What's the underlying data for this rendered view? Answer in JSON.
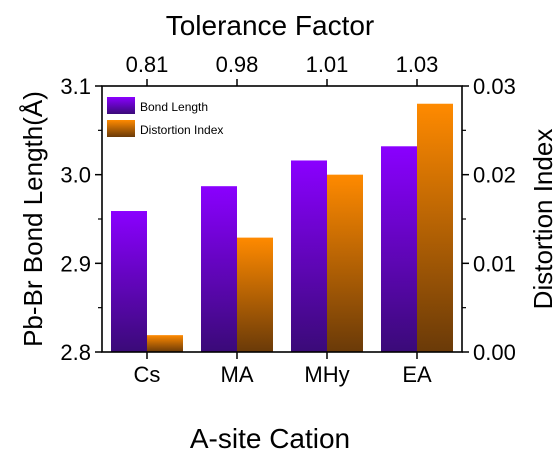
{
  "chart_data": {
    "type": "bar",
    "top_axis_title": "Tolerance Factor",
    "top_ticks": [
      "0.81",
      "0.98",
      "1.01",
      "1.03"
    ],
    "xlabel": "A-site Cation",
    "categories": [
      "Cs",
      "MA",
      "MHy",
      "EA"
    ],
    "ylabel_left": "Pb-Br Bond Length(Å)",
    "ylabel_right": "Distortion Index",
    "ylim_left": [
      2.8,
      3.1
    ],
    "ylim_right": [
      0.0,
      0.03
    ],
    "yticks_left": [
      "2.8",
      "2.9",
      "3.0",
      "3.1"
    ],
    "yticks_right": [
      "0.00",
      "0.01",
      "0.02",
      "0.03"
    ],
    "series": [
      {
        "name": "Bond Length",
        "axis": "left",
        "values": [
          2.959,
          2.987,
          3.016,
          3.032
        ],
        "color_top": "#8a00ff",
        "color_bottom": "#3a0a78"
      },
      {
        "name": "Distortion Index",
        "axis": "right",
        "values": [
          0.0019,
          0.0129,
          0.02,
          0.028
        ],
        "color_top": "#ff8a00",
        "color_bottom": "#6a3a08"
      }
    ],
    "legend_position": "top-left",
    "grid": false
  }
}
